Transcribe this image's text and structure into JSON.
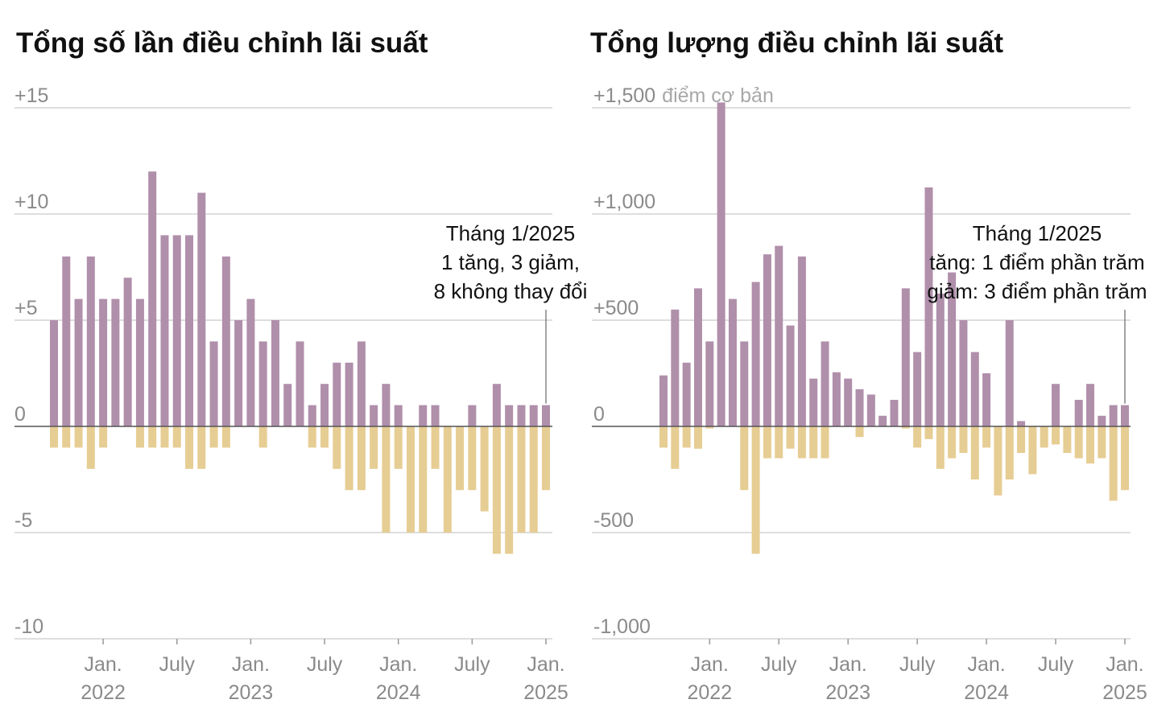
{
  "colors": {
    "increase": "#b08fab",
    "decrease": "#e6cd93",
    "grid": "#d4d4d4",
    "zero": "#555555"
  },
  "chart_data": [
    {
      "type": "bar",
      "title": "Tổng số lần điều chỉnh lãi suất",
      "x_start": "2021-09",
      "x_end": "2025-01",
      "ylim": [
        -10,
        15
      ],
      "yticks": [
        15,
        10,
        5,
        0,
        -5,
        -10
      ],
      "ytick_labels": [
        "+15",
        "+10",
        "+5",
        "0",
        "-5",
        "-10"
      ],
      "unit_label": "",
      "xticks": [
        {
          "month_index": 4,
          "line1": "Jan.",
          "line2": "2022"
        },
        {
          "month_index": 10,
          "line1": "July",
          "line2": ""
        },
        {
          "month_index": 16,
          "line1": "Jan.",
          "line2": "2023"
        },
        {
          "month_index": 22,
          "line1": "July",
          "line2": ""
        },
        {
          "month_index": 28,
          "line1": "Jan.",
          "line2": "2024"
        },
        {
          "month_index": 34,
          "line1": "July",
          "line2": ""
        },
        {
          "month_index": 40,
          "line1": "Jan.",
          "line2": "2025"
        }
      ],
      "series": [
        {
          "name": "increase",
          "values": [
            5,
            8,
            6,
            8,
            6,
            6,
            7,
            6,
            12,
            9,
            9,
            9,
            11,
            4,
            8,
            5,
            6,
            4,
            5,
            2,
            4,
            1,
            2,
            3,
            3,
            4,
            1,
            2,
            1,
            0,
            1,
            1,
            0,
            0,
            1,
            0,
            2,
            1,
            1,
            1,
            1
          ]
        },
        {
          "name": "decrease",
          "values": [
            -1,
            -1,
            -1,
            -2,
            -1,
            0,
            0,
            -1,
            -1,
            -1,
            -1,
            -2,
            -2,
            -1,
            -1,
            0,
            0,
            -1,
            0,
            0,
            0,
            -1,
            -1,
            -2,
            -3,
            -3,
            -2,
            -5,
            -2,
            -5,
            -5,
            -2,
            -5,
            -3,
            -3,
            -4,
            -6,
            -6,
            -5,
            -5,
            -3
          ]
        }
      ],
      "annotation": {
        "month_index": 40,
        "lines": [
          "Tháng 1/2025",
          "1 tăng, 3 giảm,",
          "8 không thay đổi"
        ]
      }
    },
    {
      "type": "bar",
      "title": "Tổng lượng điều chỉnh lãi suất",
      "x_start": "2021-09",
      "x_end": "2025-01",
      "ylim": [
        -1000,
        1500
      ],
      "yticks": [
        1500,
        1000,
        500,
        0,
        -500,
        -1000
      ],
      "ytick_labels": [
        "+1,500",
        "+1,000",
        "+500",
        "0",
        "-500",
        "-1,000"
      ],
      "unit_label": "điểm cơ bản",
      "xticks": [
        {
          "month_index": 4,
          "line1": "Jan.",
          "line2": "2022"
        },
        {
          "month_index": 10,
          "line1": "July",
          "line2": ""
        },
        {
          "month_index": 16,
          "line1": "Jan.",
          "line2": "2023"
        },
        {
          "month_index": 22,
          "line1": "July",
          "line2": ""
        },
        {
          "month_index": 28,
          "line1": "Jan.",
          "line2": "2024"
        },
        {
          "month_index": 34,
          "line1": "July",
          "line2": ""
        },
        {
          "month_index": 40,
          "line1": "Jan.",
          "line2": "2025"
        }
      ],
      "series": [
        {
          "name": "increase",
          "values": [
            240,
            550,
            300,
            650,
            400,
            1525,
            600,
            400,
            680,
            810,
            850,
            475,
            800,
            225,
            400,
            255,
            225,
            175,
            150,
            50,
            125,
            650,
            350,
            1125,
            625,
            725,
            500,
            350,
            250,
            0,
            500,
            25,
            0,
            0,
            200,
            0,
            125,
            200,
            50,
            100,
            100
          ]
        },
        {
          "name": "decrease",
          "values": [
            -100,
            -200,
            -100,
            -105,
            -10,
            0,
            0,
            -300,
            -600,
            -150,
            -150,
            -105,
            -150,
            -150,
            -150,
            0,
            0,
            -50,
            0,
            0,
            0,
            -10,
            -100,
            -60,
            -200,
            -150,
            -125,
            -250,
            -100,
            -325,
            -250,
            -125,
            -225,
            -100,
            -85,
            -125,
            -150,
            -175,
            -150,
            -350,
            -300
          ]
        }
      ],
      "annotation": {
        "month_index": 40,
        "lines": [
          "Tháng 1/2025",
          "tăng: 1 điểm phần trăm",
          "giảm: 3 điểm phần trăm"
        ]
      }
    }
  ]
}
